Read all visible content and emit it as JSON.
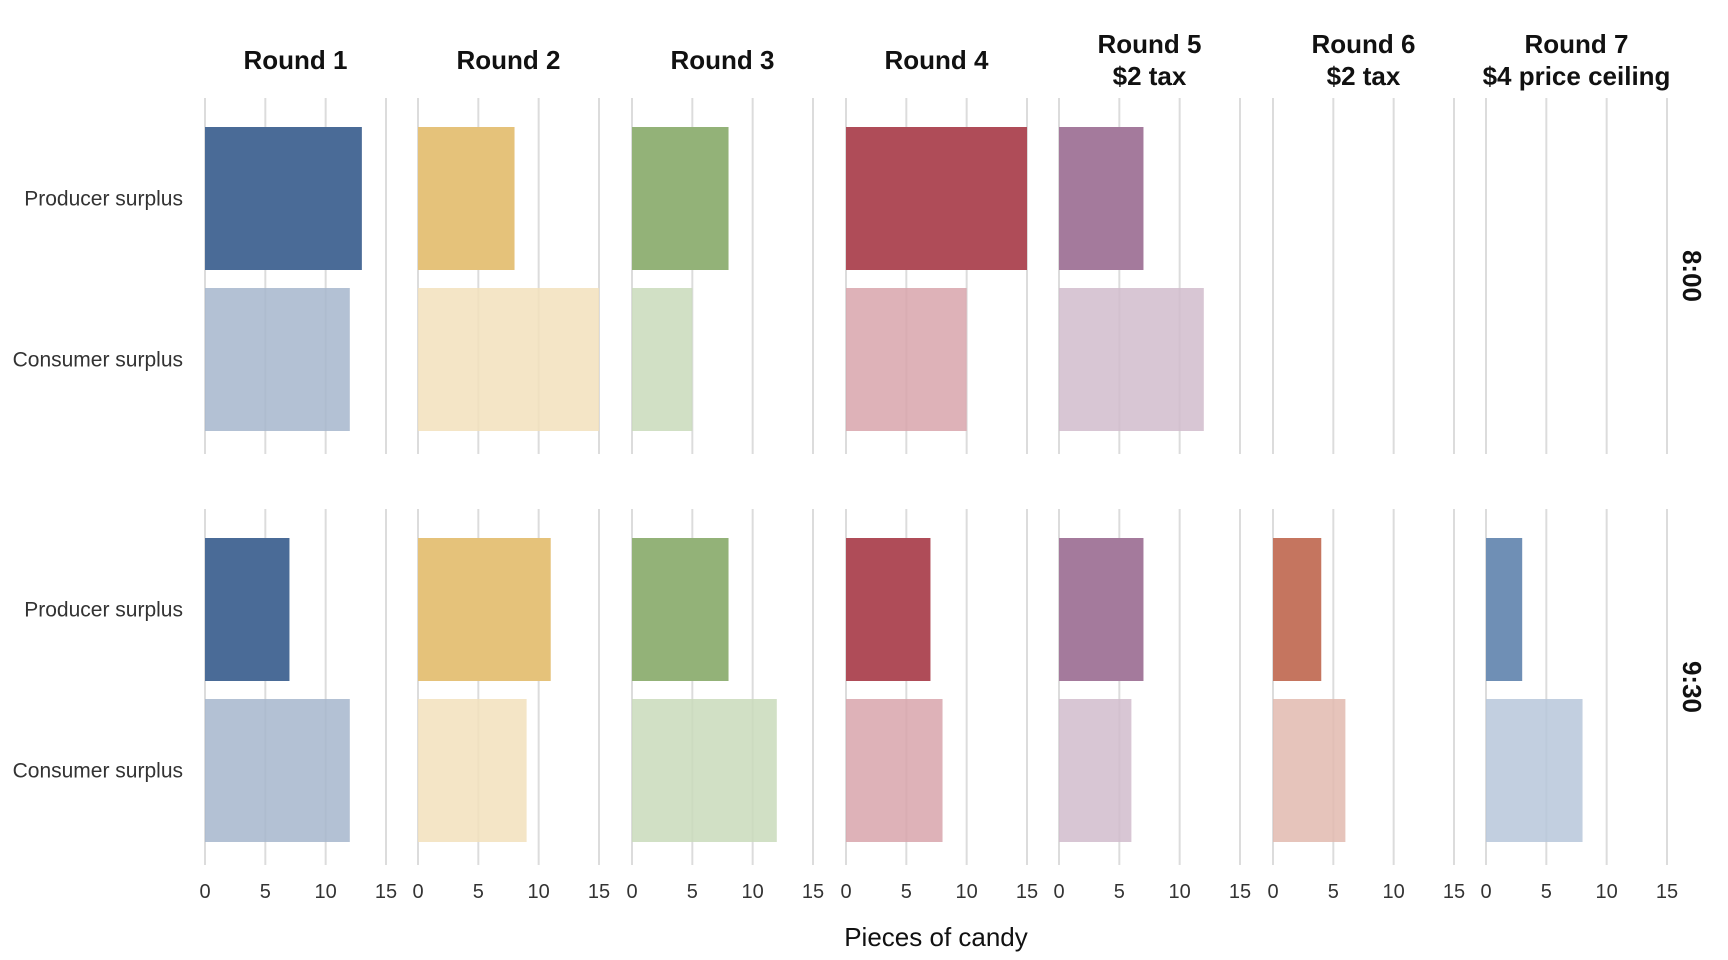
{
  "chart_data": {
    "type": "bar",
    "orientation": "horizontal",
    "xlabel": "Pieces of candy",
    "xlim": [
      0,
      15
    ],
    "x_ticks": [
      "0",
      "5",
      "10",
      "15"
    ],
    "categories": [
      "Producer surplus",
      "Consumer surplus"
    ],
    "grid": "vertical",
    "panels": [
      {
        "title": [
          "Round 1"
        ],
        "color_producer": "#4a6b97",
        "color_consumer": "#a6b6cc"
      },
      {
        "title": [
          "Round 2"
        ],
        "color_producer": "#e5c27a",
        "color_consumer": "#f2e0bc"
      },
      {
        "title": [
          "Round 3"
        ],
        "color_producer": "#93b278",
        "color_consumer": "#c9dabb"
      },
      {
        "title": [
          "Round 4"
        ],
        "color_producer": "#af4c58",
        "color_consumer": "#d8a5ab"
      },
      {
        "title": [
          "Round 5",
          "$2 tax"
        ],
        "color_producer": "#a47a9c",
        "color_consumer": "#d1bccd"
      },
      {
        "title": [
          "Round 6",
          "$2 tax"
        ],
        "color_producer": "#c5755f",
        "color_consumer": "#e2baaf"
      },
      {
        "title": [
          "Round 7",
          "$4 price ceiling"
        ],
        "color_producer": "#6f8fb5",
        "color_consumer": "#b7c7da"
      }
    ],
    "rows": [
      {
        "label": "8:00",
        "values": [
          {
            "producer": 13,
            "consumer": 12
          },
          {
            "producer": 8,
            "consumer": 15
          },
          {
            "producer": 8,
            "consumer": 5
          },
          {
            "producer": 15,
            "consumer": 10
          },
          {
            "producer": 7,
            "consumer": 12
          },
          null,
          null
        ]
      },
      {
        "label": "9:30",
        "values": [
          {
            "producer": 7,
            "consumer": 12
          },
          {
            "producer": 11,
            "consumer": 9
          },
          {
            "producer": 8,
            "consumer": 12
          },
          {
            "producer": 7,
            "consumer": 8
          },
          {
            "producer": 7,
            "consumer": 6
          },
          {
            "producer": 4,
            "consumer": 6
          },
          {
            "producer": 3,
            "consumer": 8
          }
        ]
      }
    ],
    "colors": {
      "grid": "#dcdcdc",
      "text": "#333333"
    }
  }
}
